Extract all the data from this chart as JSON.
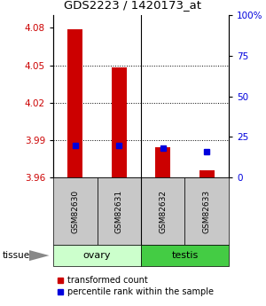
{
  "title": "GDS2223 / 1420173_at",
  "samples": [
    "GSM82630",
    "GSM82631",
    "GSM82632",
    "GSM82633"
  ],
  "tissue_groups": [
    {
      "label": "ovary",
      "indices": [
        0,
        1
      ],
      "color": "#ccffcc"
    },
    {
      "label": "testis",
      "indices": [
        2,
        3
      ],
      "color": "#44cc44"
    }
  ],
  "bar_bottom": 3.96,
  "transformed_counts": [
    4.079,
    4.048,
    3.984,
    3.966
  ],
  "percentile_ranks": [
    20,
    20,
    18,
    16
  ],
  "ylim_left": [
    3.96,
    4.09
  ],
  "ylim_right": [
    0,
    100
  ],
  "yticks_left": [
    3.96,
    3.99,
    4.02,
    4.05,
    4.08
  ],
  "yticks_right": [
    0,
    25,
    50,
    75,
    100
  ],
  "yticklabels_right": [
    "0",
    "25",
    "50",
    "75",
    "100%"
  ],
  "yticklabels_left": [
    "3.96",
    "3.99",
    "4.02",
    "4.05",
    "4.08"
  ],
  "bar_color": "#cc0000",
  "percentile_color": "#0000dd",
  "background_sample": "#c8c8c8",
  "legend_red_label": "transformed count",
  "legend_blue_label": "percentile rank within the sample",
  "bar_width": 0.35
}
